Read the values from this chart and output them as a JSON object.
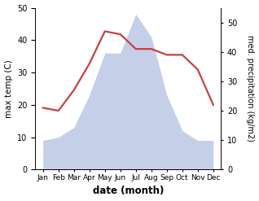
{
  "months": [
    "Jan",
    "Feb",
    "Mar",
    "Apr",
    "May",
    "Jun",
    "Jul",
    "Aug",
    "Sep",
    "Oct",
    "Nov",
    "Dec"
  ],
  "x": [
    0,
    1,
    2,
    3,
    4,
    5,
    6,
    7,
    8,
    9,
    10,
    11
  ],
  "temp": [
    9,
    10,
    13,
    23,
    36,
    36,
    48,
    41,
    23,
    12,
    9,
    9
  ],
  "precip": [
    21,
    20,
    27,
    36,
    47,
    46,
    41,
    41,
    39,
    39,
    34,
    22
  ],
  "precip_color": "#c94040",
  "temp_fill_color": "#c5cfe8",
  "ylabel_left": "max temp (C)",
  "ylabel_right": "med. precipitation (kg/m2)",
  "xlabel": "date (month)",
  "ylim_left": [
    0,
    50
  ],
  "ylim_right": [
    0,
    55
  ],
  "yticks_left": [
    0,
    10,
    20,
    30,
    40,
    50
  ],
  "yticks_right": [
    0,
    10,
    20,
    30,
    40,
    50
  ],
  "bg_color": "#ffffff"
}
